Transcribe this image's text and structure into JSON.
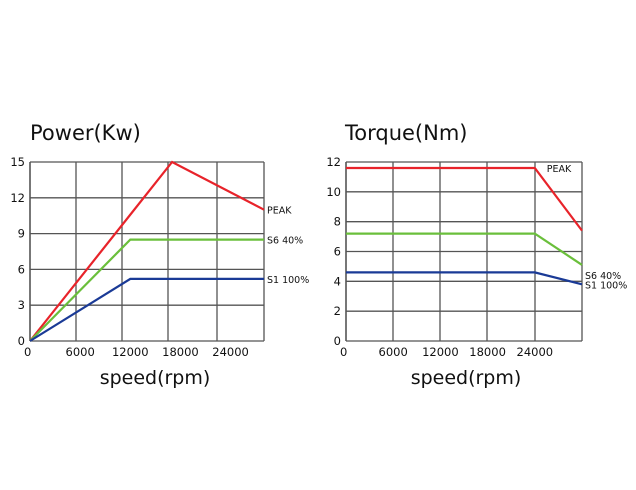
{
  "colors": {
    "grid": "#555555",
    "axis": "#222222",
    "peak": "#e8232a",
    "s6": "#6abf3b",
    "s1": "#1a3a96"
  },
  "chart_data": [
    {
      "type": "line",
      "title": "Power(Kw)",
      "xlabel": "speed(rpm)",
      "ylabel": "",
      "xlim": [
        0,
        28000
      ],
      "ylim": [
        0,
        15
      ],
      "xticks": [
        0,
        6000,
        12000,
        18000,
        24000
      ],
      "xtick_labels": [
        "0",
        "6000",
        "12000",
        "18000",
        "24000"
      ],
      "yticks": [
        0,
        3,
        6,
        9,
        12,
        15
      ],
      "ytick_labels": [
        "0",
        "3",
        "6",
        "9",
        "12",
        "15"
      ],
      "grid": true,
      "series": [
        {
          "name": "PEAK",
          "color": "#e8232a",
          "x": [
            0,
            17000,
            28000
          ],
          "y": [
            0,
            15,
            11
          ]
        },
        {
          "name": "S6 40%",
          "color": "#6abf3b",
          "x": [
            0,
            12000,
            28000
          ],
          "y": [
            0,
            8.5,
            8.5
          ]
        },
        {
          "name": "S1 100%",
          "color": "#1a3a96",
          "x": [
            0,
            12000,
            28000
          ],
          "y": [
            0,
            5.2,
            5.2
          ]
        }
      ]
    },
    {
      "type": "line",
      "title": "Torque(Nm)",
      "xlabel": "speed(rpm)",
      "ylabel": "",
      "xlim": [
        0,
        30000
      ],
      "ylim": [
        0,
        12
      ],
      "xticks": [
        0,
        6000,
        12000,
        18000,
        24000
      ],
      "xtick_labels": [
        "0",
        "6000",
        "12000",
        "18000",
        "24000"
      ],
      "yticks": [
        0,
        2,
        4,
        6,
        8,
        10,
        12
      ],
      "ytick_labels": [
        "0",
        "2",
        "4",
        "6",
        "8",
        "10",
        "12"
      ],
      "grid": true,
      "series": [
        {
          "name": "PEAK",
          "color": "#e8232a",
          "x": [
            0,
            24000,
            30000
          ],
          "y": [
            11.6,
            11.6,
            7.4
          ]
        },
        {
          "name": "S6 40%",
          "color": "#6abf3b",
          "x": [
            0,
            24000,
            30000
          ],
          "y": [
            7.2,
            7.2,
            5.1
          ]
        },
        {
          "name": "S1 100%",
          "color": "#1a3a96",
          "x": [
            0,
            24000,
            30000
          ],
          "y": [
            4.6,
            4.6,
            3.8
          ]
        }
      ]
    }
  ]
}
